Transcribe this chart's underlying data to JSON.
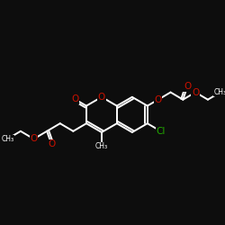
{
  "bg_color": "#0d0d0d",
  "bond_color": "white",
  "O_color": "#cc1100",
  "Cl_color": "#22aa00",
  "lw": 1.4,
  "figsize": [
    2.5,
    2.5
  ],
  "dpi": 100,
  "xlim": [
    0,
    1
  ],
  "ylim": [
    0,
    1
  ]
}
